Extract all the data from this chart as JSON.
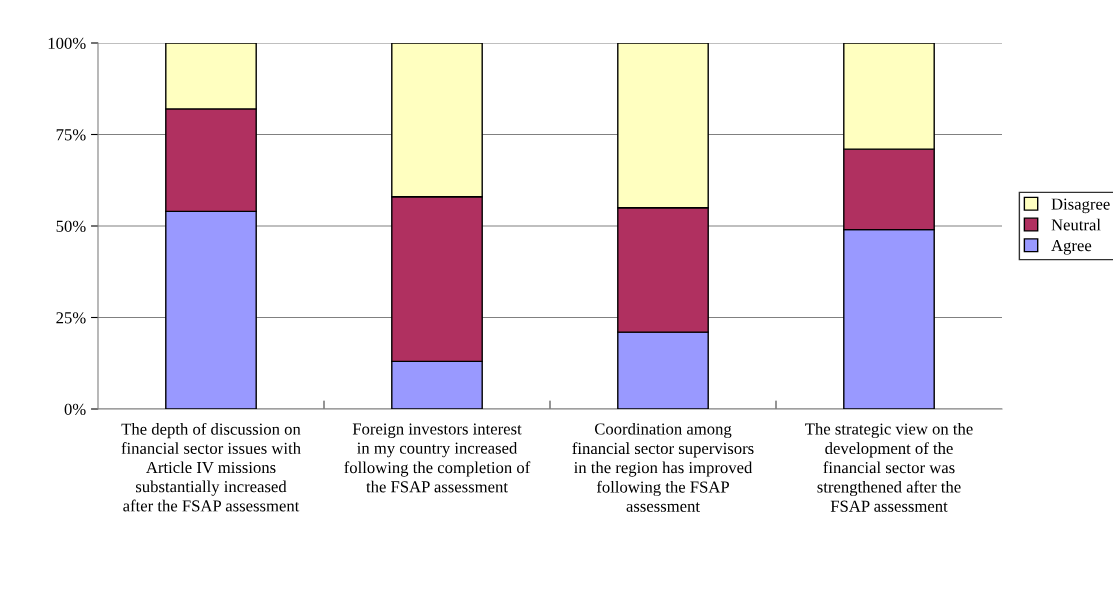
{
  "chart_data": {
    "type": "bar",
    "stacked": true,
    "categories": [
      "The depth of discussion on\nfinancial sector issues with\nArticle IV missions\nsubstantially increased\nafter the FSAP assessment",
      "Foreign investors interest\nin my country increased\nfollowing the completion of\nthe FSAP assessment",
      "Coordination among\nfinancial sector supervisors\nin the region has improved\nfollowing the FSAP\nassessment",
      "The strategic view on the\ndevelopment of the\nfinancial sector was\nstrengthened after the\nFSAP assessment"
    ],
    "series": [
      {
        "name": "Agree",
        "color": "#9999ff",
        "values": [
          54,
          13,
          21,
          49
        ]
      },
      {
        "name": "Neutral",
        "color": "#b03060",
        "values": [
          28,
          45,
          34,
          22
        ]
      },
      {
        "name": "Disagree",
        "color": "#ffffc0",
        "values": [
          18,
          42,
          45,
          29
        ]
      }
    ],
    "ylim": [
      0,
      100
    ],
    "yticks": [
      {
        "value": 0,
        "label": "0%"
      },
      {
        "value": 25,
        "label": "25%"
      },
      {
        "value": 50,
        "label": "50%"
      },
      {
        "value": 75,
        "label": "75%"
      },
      {
        "value": 100,
        "label": "100%"
      }
    ],
    "grid": "y",
    "legend": "right"
  }
}
